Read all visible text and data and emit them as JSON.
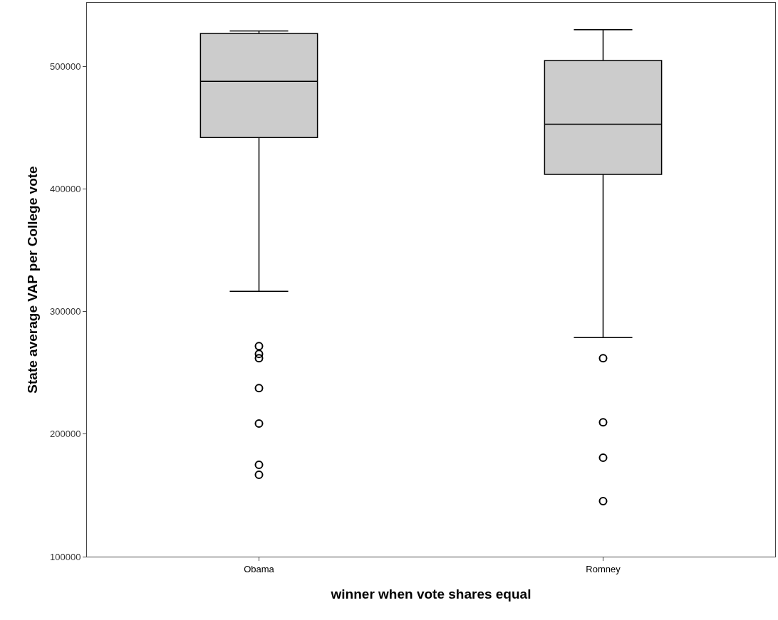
{
  "chart_data": {
    "type": "box",
    "xlabel": "winner when vote shares equal",
    "ylabel": "State average VAP per College vote",
    "categories": [
      "Obama",
      "Romney"
    ],
    "boxes": [
      {
        "low": 316500,
        "q1": 442000,
        "median": 488000,
        "q3": 527000,
        "high": 529000,
        "outliers": [
          271800,
          265500,
          262000,
          237600,
          208600,
          174900,
          166800
        ]
      },
      {
        "low": 278800,
        "q1": 412000,
        "median": 453000,
        "q3": 505000,
        "high": 530000,
        "outliers": [
          262000,
          209700,
          180700,
          145300
        ]
      }
    ],
    "color": "#cccccc",
    "ylim": [
      100000,
      552000
    ],
    "yticks": [
      100000,
      200000,
      300000,
      400000,
      500000
    ],
    "marker": "circle"
  }
}
